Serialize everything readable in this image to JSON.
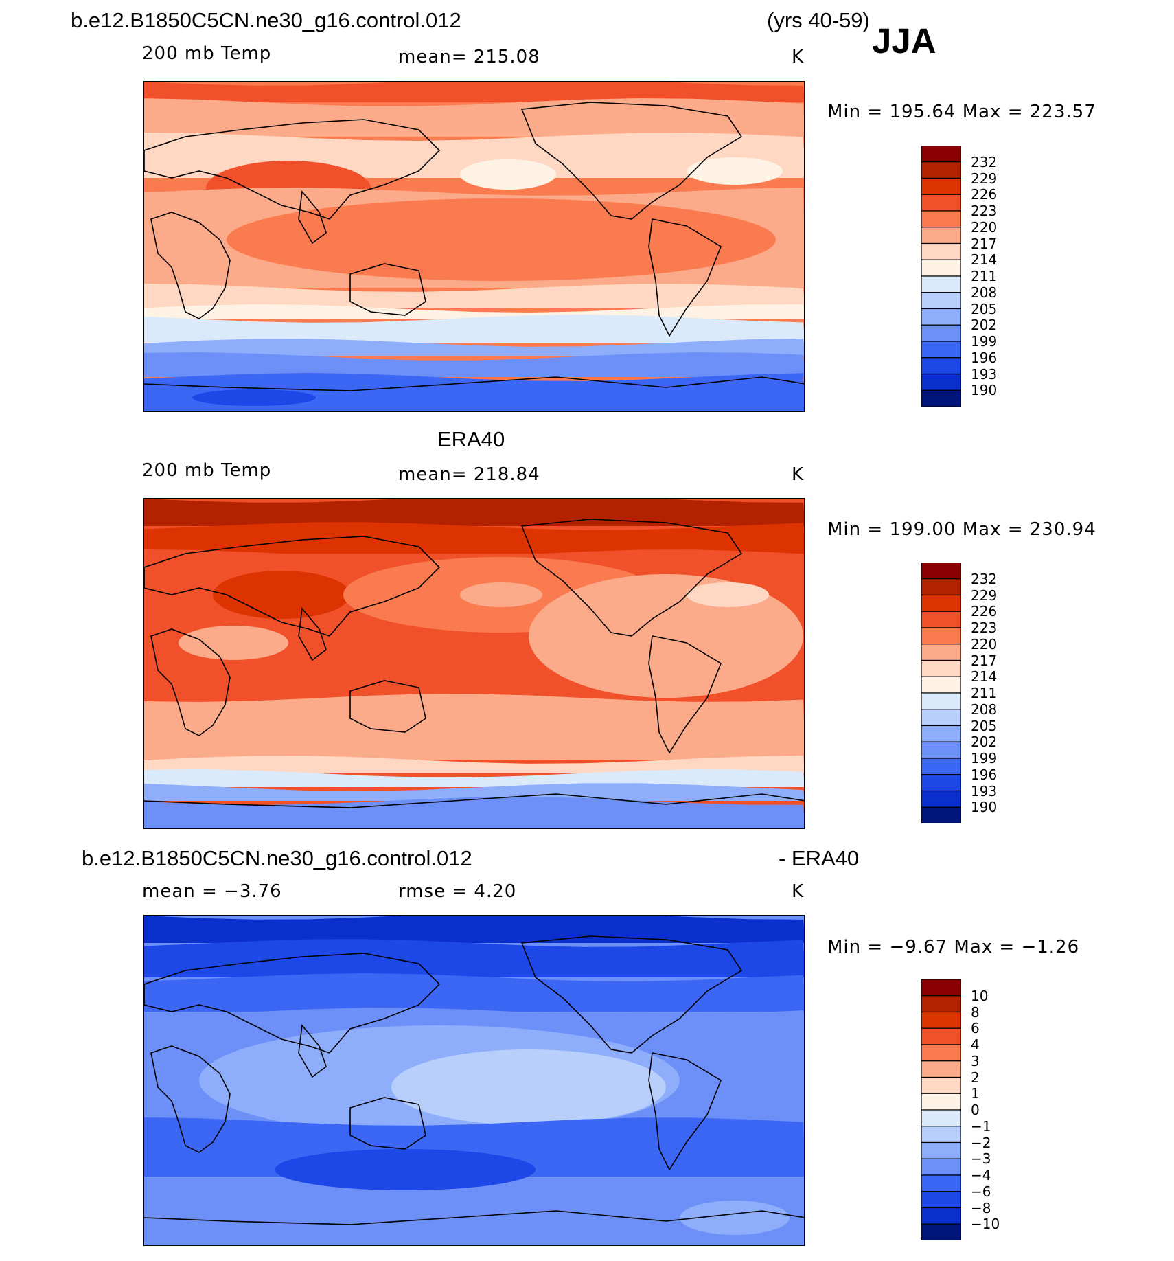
{
  "header": {
    "case_name": "b.e12.B1850C5CN.ne30_g16.control.012",
    "years": "(yrs 40-59)",
    "season": "JJA"
  },
  "panels": [
    {
      "title": "",
      "variable": "200 mb Temp",
      "stat_left": "",
      "stat_mid": "mean=  215.08",
      "units": "K",
      "minmax": "Min  =  195.64  Max  =  223.57",
      "colorbar_labels": [
        "232",
        "229",
        "226",
        "223",
        "220",
        "217",
        "214",
        "211",
        "208",
        "205",
        "202",
        "199",
        "196",
        "193",
        "190"
      ]
    },
    {
      "title": "ERA40",
      "variable": "200 mb Temp",
      "stat_left": "",
      "stat_mid": "mean=  218.84",
      "units": "K",
      "minmax": "Min  =  199.00  Max  =  230.94",
      "colorbar_labels": [
        "232",
        "229",
        "226",
        "223",
        "220",
        "217",
        "214",
        "211",
        "208",
        "205",
        "202",
        "199",
        "196",
        "193",
        "190"
      ]
    },
    {
      "title": "b.e12.B1850C5CN.ne30_g16.control.012",
      "title_right": "- ERA40",
      "variable": "",
      "stat_left": "mean  =    −3.76",
      "stat_mid": "rmse  =     4.20",
      "units": "K",
      "minmax": "Min  =    −9.67  Max  =    −1.26",
      "colorbar_labels": [
        "10",
        "8",
        "6",
        "4",
        "3",
        "2",
        "1",
        "0",
        "−1",
        "−2",
        "−3",
        "−4",
        "−6",
        "−8",
        "−10"
      ]
    }
  ],
  "colorbar_colors": [
    "#8b0000",
    "#b22200",
    "#dd3300",
    "#f0502a",
    "#fa7b4f",
    "#fcab8a",
    "#fed8c2",
    "#fef2e4",
    "#dbeafb",
    "#b8cefb",
    "#8eaefc",
    "#6c8ff8",
    "#3c66f4",
    "#1d47e6",
    "#0a2fcc",
    "#00147a"
  ],
  "map_colors": {
    "deep_red": "#b22200",
    "red": "#dd3300",
    "red_orange": "#f0502a",
    "orange": "#fa7b4f",
    "salmon": "#fcab8a",
    "peach": "#fed8c2",
    "cream": "#fef2e4",
    "pale_blue": "#dbeafb",
    "light_blue": "#b8cefb",
    "blue_mid": "#8eaefc",
    "blue": "#6c8ff8",
    "blue_strong": "#3c66f4",
    "blue_deep": "#1d47e6",
    "navy": "#0a2fcc"
  }
}
